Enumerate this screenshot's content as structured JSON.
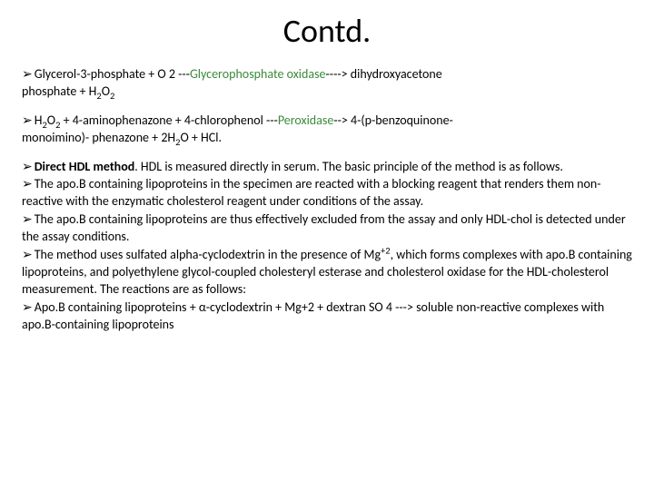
{
  "title": "Contd.",
  "reaction1": {
    "bullet": "➢",
    "pre": "Glycerol-3-phosphate + O 2 ---",
    "enzyme": "Glycerophosphate oxidase",
    "post1": "----> dihydroxyacetone",
    "line2a": "phosphate + H",
    "line2b": "O"
  },
  "reaction2": {
    "bullet": "➢",
    "pre1": "H",
    "pre2": "O",
    "pre3": " + 4-aminophenazone + 4-chlorophenol ---",
    "enzyme": "Peroxidase",
    "post": "--> 4-(p-benzoquinone-",
    "line2a": "monoimino)- phenazone + 2H",
    "line2b": "O + HCl."
  },
  "p3": {
    "b1": "➢",
    "bold1": "Direct HDL method",
    "t1": ". HDL is measured directly in serum. The basic principle of the method is as follows.",
    "b2": "➢",
    "t2": "The apo.B containing lipoproteins in the specimen are reacted with a blocking reagent that renders them non-reactive with the enzymatic cholesterol reagent under conditions of the assay.",
    "b3": "➢",
    "t3": "The apo.B containing lipoproteins are thus effectively excluded from the assay and only HDL-chol is detected under the assay conditions.",
    "b4": "➢",
    "t4a": "The method uses sulfated alpha-cyclodextrin in the presence of Mg",
    "t4b": ", which forms complexes with apo.B containing lipoproteins, and polyethylene glycol-coupled cholesteryl esterase and cholesterol oxidase for the HDL-cholesterol measurement. The reactions are as follows:",
    "b5": "➢",
    "t5": "Apo.B containing lipoproteins + α-cyclodextrin + Mg+2 + dextran SO 4 ---> soluble non-reactive complexes with apo.B-containing lipoproteins"
  },
  "colors": {
    "enzyme": "#3a8a3a",
    "text": "#000000",
    "background": "#ffffff"
  }
}
